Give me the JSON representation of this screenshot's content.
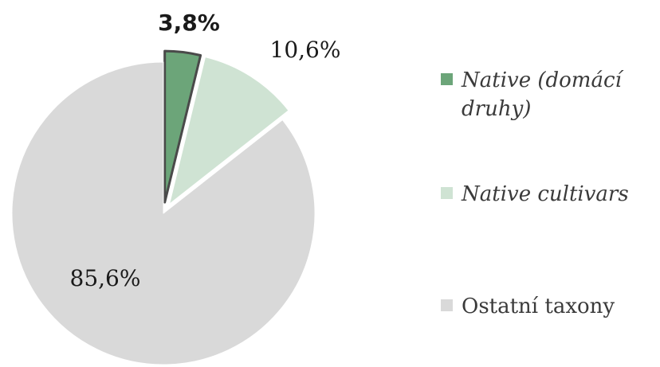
{
  "chart_data": {
    "type": "pie",
    "categories": [
      "Native (domácí druhy)",
      "Native cultivars",
      "Ostatní taxony"
    ],
    "values": [
      3.8,
      10.6,
      85.6
    ],
    "data_labels": [
      "3,8%",
      "10,6%",
      "85,6%"
    ],
    "colors": [
      "#6ca579",
      "#cfe3d3",
      "#d9d9d9"
    ],
    "edge_colors": [
      "#4a4a4a",
      "#ffffff",
      "#ffffff"
    ],
    "title": "",
    "legend_position": "right",
    "legend": [
      {
        "lines": [
          "Native (domácí",
          "druhy)"
        ],
        "italic": true
      },
      {
        "lines": [
          "Native cultivars"
        ],
        "italic": true
      },
      {
        "lines": [
          "Ostatní taxony"
        ],
        "italic": false
      }
    ]
  }
}
